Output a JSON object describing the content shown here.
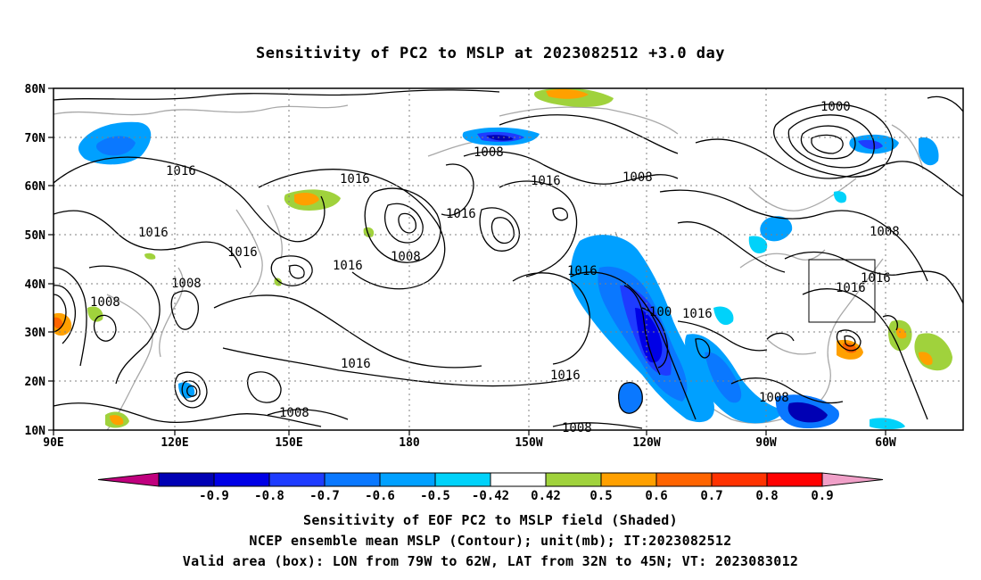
{
  "title": "Sensitivity of PC2 to MSLP at 2023082512 +3.0 day",
  "map": {
    "lat_labels": [
      "80N",
      "70N",
      "60N",
      "50N",
      "40N",
      "30N",
      "20N",
      "10N"
    ],
    "lon_labels": [
      "90E",
      "120E",
      "150E",
      "180",
      "150W",
      "120W",
      "90W",
      "60W"
    ],
    "contour_labels": [
      {
        "text": "1016"
      },
      {
        "text": "1016"
      },
      {
        "text": "1016"
      },
      {
        "text": "1008"
      },
      {
        "text": "1008"
      },
      {
        "text": "1016"
      },
      {
        "text": "1008"
      },
      {
        "text": "1008"
      },
      {
        "text": "1016"
      },
      {
        "text": "1016"
      },
      {
        "text": "1008"
      },
      {
        "text": "1008"
      },
      {
        "text": "1000"
      },
      {
        "text": "1008"
      },
      {
        "text": "1016"
      },
      {
        "text": "1016"
      },
      {
        "text": "1016"
      },
      {
        "text": "100"
      },
      {
        "text": "1016"
      },
      {
        "text": "1016"
      },
      {
        "text": "1008"
      },
      {
        "text": "1008"
      },
      {
        "text": "1016"
      }
    ],
    "valid_box": {
      "lon": [
        "79W",
        "62W"
      ],
      "lat": [
        "32N",
        "45N"
      ]
    }
  },
  "colorbar": {
    "labels": [
      "-0.9",
      "-0.8",
      "-0.7",
      "-0.6",
      "-0.5",
      "-0.42",
      "0.42",
      "0.5",
      "0.6",
      "0.7",
      "0.8",
      "0.9"
    ],
    "colors": [
      "#c0007e",
      "#0000b4",
      "#0000e6",
      "#1e3cff",
      "#0a78ff",
      "#00a0ff",
      "#00d2fa",
      "#ffffff",
      "#a0d23c",
      "#ffa000",
      "#ff6400",
      "#ff3200",
      "#ff0000",
      "#f0a0c8"
    ]
  },
  "captions": {
    "line1": "Sensitivity of EOF PC2 to MSLP field (Shaded)",
    "line2": "NCEP ensemble mean MSLP (Contour); unit(mb); IT:2023082512",
    "line3": "Valid area (box): LON from 79W to 62W, LAT from 32N to 45N; VT: 2023083012"
  }
}
